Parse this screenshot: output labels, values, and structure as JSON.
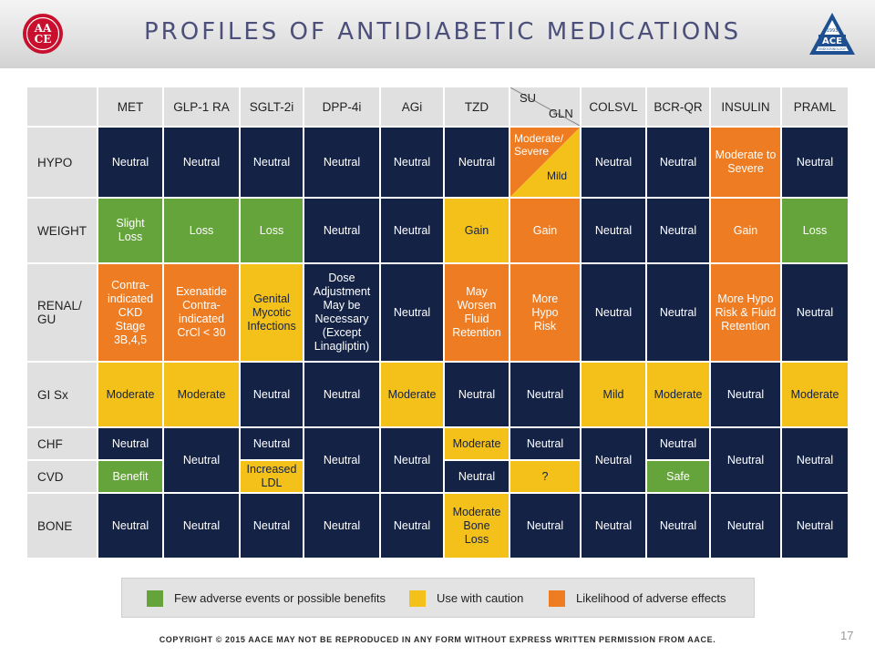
{
  "header": {
    "title": "PROFILES OF ANTIDIABETIC MEDICATIONS",
    "aace_logo_text": "AACE",
    "ace_logo_text": "ACE",
    "ace_logo_year": "1993",
    "ace_logo_sub": "ENDOCRINOLOGY"
  },
  "colors": {
    "navy": "#132245",
    "green": "#65a33b",
    "yellow": "#f4c11a",
    "orange": "#ed7c23",
    "header_gray": "#e0e0e0"
  },
  "table": {
    "columns": [
      "MET",
      "GLP-1 RA",
      "SGLT-2i",
      "DPP-4i",
      "AGi",
      "TZD",
      "SU",
      "GLN",
      "COLSVL",
      "BCR-QR",
      "INSULIN",
      "PRAML"
    ],
    "rows": {
      "hypo": {
        "label": "HYPO",
        "met": "Neutral",
        "glp1": "Neutral",
        "sglt2": "Neutral",
        "dpp4": "Neutral",
        "agi": "Neutral",
        "tzd": "Neutral",
        "su_part": "Moderate/ Severe",
        "gln_part": "Mild",
        "colsvl": "Neutral",
        "bcrqr": "Neutral",
        "insulin": "Moderate to Severe",
        "praml": "Neutral"
      },
      "weight": {
        "label": "WEIGHT",
        "met": "Slight Loss",
        "glp1": "Loss",
        "sglt2": "Loss",
        "dpp4": "Neutral",
        "agi": "Neutral",
        "tzd": "Gain",
        "su_gln": "Gain",
        "colsvl": "Neutral",
        "bcrqr": "Neutral",
        "insulin": "Gain",
        "praml": "Loss"
      },
      "renal": {
        "label": "RENAL/ GU",
        "met": "Contra- indicated CKD Stage 3B,4,5",
        "glp1": "Exenatide Contra- indicated CrCl < 30",
        "sglt2": "Genital Mycotic Infections",
        "dpp4": "Dose Adjustment May be Necessary (Except Linagliptin)",
        "agi": "Neutral",
        "tzd": "May Worsen Fluid Retention",
        "su_gln": "More Hypo Risk",
        "colsvl": "Neutral",
        "bcrqr": "Neutral",
        "insulin": "More Hypo Risk & Fluid Retention",
        "praml": "Neutral"
      },
      "gi": {
        "label": "GI Sx",
        "met": "Moderate",
        "glp1": "Moderate",
        "sglt2": "Neutral",
        "dpp4": "Neutral",
        "agi": "Moderate",
        "tzd": "Neutral",
        "su_gln": "Neutral",
        "colsvl": "Mild",
        "bcrqr": "Moderate",
        "insulin": "Neutral",
        "praml": "Moderate"
      },
      "chf": {
        "label": "CHF",
        "met": "Neutral",
        "sglt2": "Neutral",
        "tzd": "Moderate",
        "su_gln": "Neutral",
        "bcrqr": "Neutral"
      },
      "cvd": {
        "label": "CVD",
        "met": "Benefit",
        "sglt2": "Increased LDL",
        "tzd": "Neutral",
        "su_gln": "?",
        "bcrqr": "Safe"
      },
      "chf_cvd_merged": {
        "glp1": "Neutral",
        "dpp4": "Neutral",
        "agi": "Neutral",
        "colsvl": "Neutral",
        "insulin": "Neutral",
        "praml": "Neutral"
      },
      "bone": {
        "label": "BONE",
        "met": "Neutral",
        "glp1": "Neutral",
        "sglt2": "Neutral",
        "dpp4": "Neutral",
        "agi": "Neutral",
        "tzd": "Moderate Bone Loss",
        "su_gln": "Neutral",
        "colsvl": "Neutral",
        "bcrqr": "Neutral",
        "insulin": "Neutral",
        "praml": "Neutral"
      }
    }
  },
  "legend": {
    "green": "Few adverse events or possible benefits",
    "yellow": "Use with caution",
    "orange": "Likelihood of adverse effects"
  },
  "footer": {
    "copyright": "COPYRIGHT © 2015 AACE MAY NOT BE REPRODUCED IN ANY FORM WITHOUT EXPRESS WRITTEN PERMISSION FROM AACE.",
    "page_number": "17"
  }
}
